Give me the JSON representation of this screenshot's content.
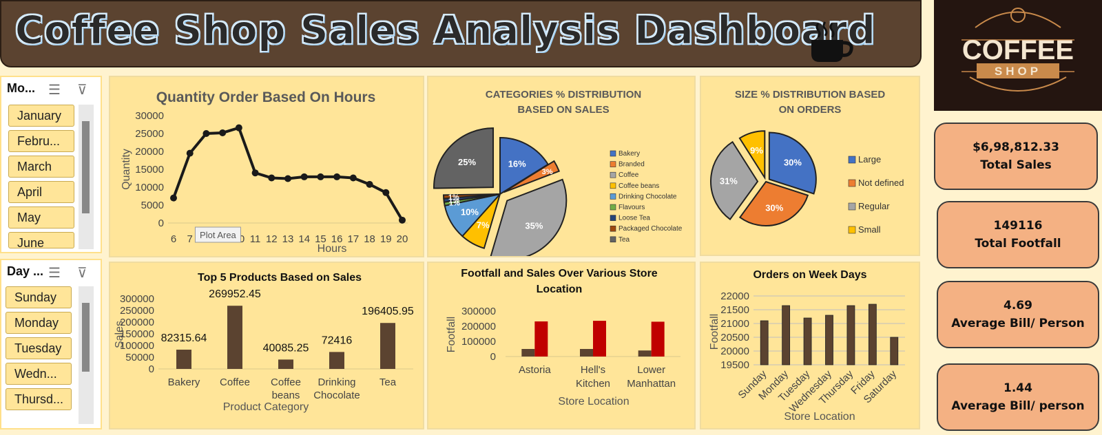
{
  "title": "Coffee Shop Sales Analysis Dashboard",
  "logo": {
    "line1": "COFFEE",
    "line2": "SHOP"
  },
  "slicers": {
    "month": {
      "header": "Mo...",
      "items": [
        "January",
        "Febru...",
        "March",
        "April",
        "May",
        "June"
      ]
    },
    "day": {
      "header": "Day ...",
      "items": [
        "Sunday",
        "Monday",
        "Tuesday",
        "Wedn...",
        "Thursd..."
      ]
    }
  },
  "kpis": [
    {
      "value": "$6,98,812.33",
      "label": "Total Sales"
    },
    {
      "value": "149116",
      "label": "Total Footfall"
    },
    {
      "value": "4.69",
      "label": "Average Bill/ Person"
    },
    {
      "value": "1.44",
      "label": "Average Bill/ person"
    }
  ],
  "tooltip": "Plot Area",
  "colors": {
    "brown": "#5b4330",
    "panel": "#ffe599",
    "kpi": "#f4b183",
    "red": "#c00000"
  },
  "chart_data": [
    {
      "id": "hours",
      "type": "line",
      "title": "Quantity Order Based On Hours",
      "xlabel": "Hours",
      "ylabel": "Quantity",
      "x": [
        6,
        7,
        8,
        9,
        10,
        11,
        12,
        13,
        14,
        15,
        16,
        17,
        18,
        19,
        20
      ],
      "values": [
        7000,
        19500,
        25000,
        25200,
        26600,
        14000,
        12600,
        12400,
        12900,
        12900,
        12900,
        12600,
        10800,
        8500,
        800
      ],
      "ylim": [
        0,
        30000
      ],
      "yticks": [
        0,
        5000,
        10000,
        15000,
        20000,
        25000,
        30000
      ]
    },
    {
      "id": "categories",
      "type": "pie",
      "title": "CATEGORIES % DISTRIBUTION BASED ON SALES",
      "labels": [
        "Bakery",
        "Branded",
        "Coffee",
        "Coffee beans",
        "Drinking Chocolate",
        "Flavours",
        "Loose Tea",
        "Packaged Chocolate",
        "Tea"
      ],
      "values": [
        16,
        3,
        35,
        7,
        10,
        1,
        1,
        1,
        25
      ],
      "slice_labels": [
        "16%",
        "3%",
        "35%",
        "7%",
        "10%",
        "1%",
        "1%",
        "1%",
        "25%"
      ],
      "colors": [
        "#4472c4",
        "#ed7d31",
        "#a5a5a5",
        "#ffc000",
        "#5b9bd5",
        "#70ad47",
        "#264478",
        "#9e480e",
        "#636363"
      ],
      "legend": "right"
    },
    {
      "id": "size",
      "type": "pie",
      "title": "SIZE % DISTRIBUTION BASED ON ORDERS",
      "labels": [
        "Large",
        "Not defined",
        "Regular",
        "Small"
      ],
      "values": [
        30,
        30,
        31,
        9
      ],
      "slice_labels": [
        "30%",
        "30%",
        "31%",
        "9%"
      ],
      "colors": [
        "#4472c4",
        "#ed7d31",
        "#a5a5a5",
        "#ffc000"
      ],
      "legend": "right"
    },
    {
      "id": "products",
      "type": "bar",
      "title": "Top 5 Products Based on Sales",
      "xlabel": "Product Category",
      "ylabel": "Sales",
      "categories": [
        "Bakery",
        "Coffee",
        "Coffee beans",
        "Drinking Chocolate",
        "Tea"
      ],
      "category_lines": [
        [
          "Bakery"
        ],
        [
          "Coffee"
        ],
        [
          "Coffee",
          "beans"
        ],
        [
          "Drinking",
          "Chocolate"
        ],
        [
          "Tea"
        ]
      ],
      "values": [
        82315.64,
        269952.45,
        40085.25,
        72416,
        196405.95
      ],
      "value_labels": [
        "82315.64",
        "269952.45",
        "40085.25",
        "72416",
        "196405.95"
      ],
      "ylim": [
        0,
        300000
      ],
      "yticks": [
        0,
        50000,
        100000,
        150000,
        200000,
        250000,
        300000
      ]
    },
    {
      "id": "location",
      "type": "bar",
      "title": "Footfall and Sales Over Various Store Location",
      "xlabel": "Store Location",
      "ylabel": "Footfall",
      "categories": [
        "Astoria",
        "Hell's Kitchen",
        "Lower Manhattan"
      ],
      "category_lines": [
        [
          "Astoria"
        ],
        [
          "Hell's",
          "Kitchen"
        ],
        [
          "Lower",
          "Manhattan"
        ]
      ],
      "series": [
        {
          "values": [
            50000,
            50000,
            40000
          ],
          "color": "#5b4330"
        },
        {
          "values": [
            232000,
            236000,
            230000
          ],
          "color": "#c00000"
        }
      ],
      "ylim": [
        0,
        300000
      ],
      "yticks": [
        0,
        100000,
        200000,
        300000
      ]
    },
    {
      "id": "weekdays",
      "type": "bar",
      "title": "Orders on Week Days",
      "xlabel": "Store Location",
      "ylabel": "Footfall",
      "categories": [
        "Sunday",
        "Monday",
        "Tuesday",
        "Wednesday",
        "Thursday",
        "Friday",
        "Saturday"
      ],
      "values": [
        21100,
        21650,
        21200,
        21300,
        21650,
        21700,
        20500
      ],
      "ylim": [
        19500,
        22000
      ],
      "yticks": [
        19500,
        20000,
        20500,
        21000,
        21500,
        22000
      ],
      "grid": true
    }
  ]
}
